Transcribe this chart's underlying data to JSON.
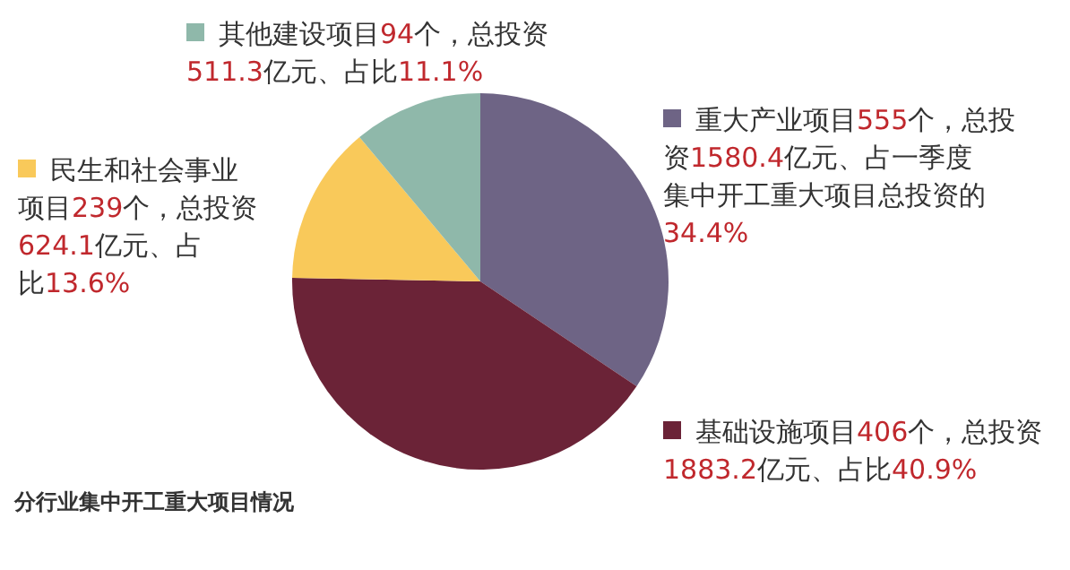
{
  "chart_data": {
    "type": "pie",
    "title": "分行业集中开工重大项目情况",
    "categories": [
      "重大产业项目555个，总投资1580.4亿元、占一季度集中开工重大项目总投资的34.4%",
      "基础设施项目406个，总投资1883.2亿元、占比40.9%",
      "民生和社会事业项目239个，总投资624.1亿元、占比13.6%",
      "其他建设项目94个，总投资511.3亿元、占比11.1%"
    ],
    "values": [
      34.4,
      40.9,
      13.6,
      11.1
    ],
    "colors": [
      "#6e6485",
      "#6b2337",
      "#f9c95a",
      "#8fb8aa"
    ]
  }
}
